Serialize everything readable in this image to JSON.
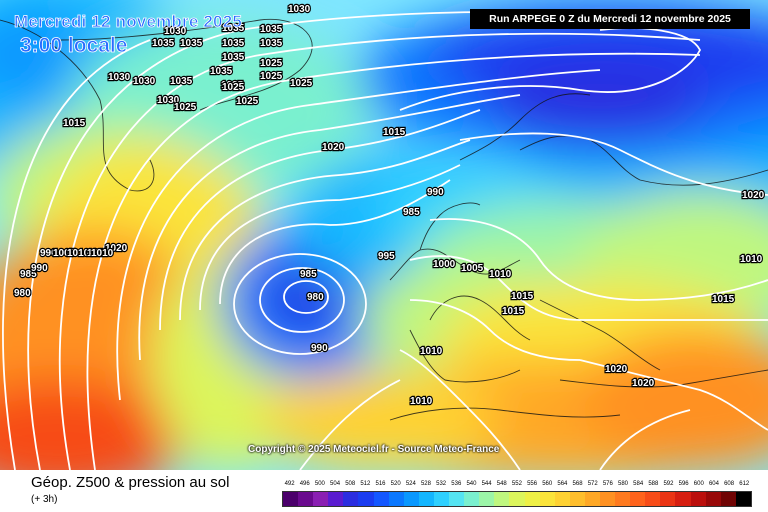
{
  "header": {
    "date": "Mercredi 12 novembre 2025",
    "time": "3:00 locale",
    "run": "Run ARPEGE 0 Z du Mercredi 12 novembre 2025"
  },
  "copyright": "Copyright © 2025 Meteociel.fr - Source Meteo-France",
  "footer": {
    "title": "Géop. Z500 & pression au sol",
    "subtitle": "(+ 3h)"
  },
  "legend": {
    "values": [
      "492",
      "496",
      "500",
      "504",
      "508",
      "512",
      "516",
      "520",
      "524",
      "528",
      "532",
      "536",
      "540",
      "544",
      "548",
      "552",
      "556",
      "560",
      "564",
      "568",
      "572",
      "576",
      "580",
      "584",
      "588",
      "592",
      "596",
      "600",
      "604",
      "608",
      "612"
    ],
    "colors": [
      "#4b006b",
      "#6a0a8e",
      "#8a1fb2",
      "#5a1cd0",
      "#2b2de0",
      "#1b3cf0",
      "#1457ff",
      "#0b78ff",
      "#0a98ff",
      "#14b6ff",
      "#2fd0ff",
      "#55e4f2",
      "#7af0cf",
      "#9cf5a8",
      "#bff77f",
      "#dcf55c",
      "#eef046",
      "#fbe43b",
      "#ffd233",
      "#ffbe2c",
      "#ffa826",
      "#ff9122",
      "#ff7a1f",
      "#ff631c",
      "#f74c18",
      "#ea3414",
      "#d61e10",
      "#bb0f0c",
      "#980808",
      "#700404",
      "#000000"
    ]
  },
  "isobars": {
    "labels": [
      "1030",
      "1035",
      "1030",
      "1035",
      "1035",
      "1035",
      "1035",
      "1035",
      "1035",
      "1025",
      "1025",
      "1025",
      "1025",
      "1035",
      "1035",
      "1030",
      "1030",
      "1035",
      "1030",
      "1025",
      "1025",
      "1015",
      "1015",
      "1020",
      "990",
      "985",
      "995",
      "1000",
      "1005",
      "1010",
      "1015",
      "1015",
      "1010",
      "1010",
      "985",
      "980",
      "990",
      "990",
      "985",
      "990",
      "990",
      "1005",
      "1010",
      "1015",
      "1020",
      "980",
      "1020",
      "1010",
      "1015",
      "1020",
      "1020",
      "1010"
    ]
  }
}
